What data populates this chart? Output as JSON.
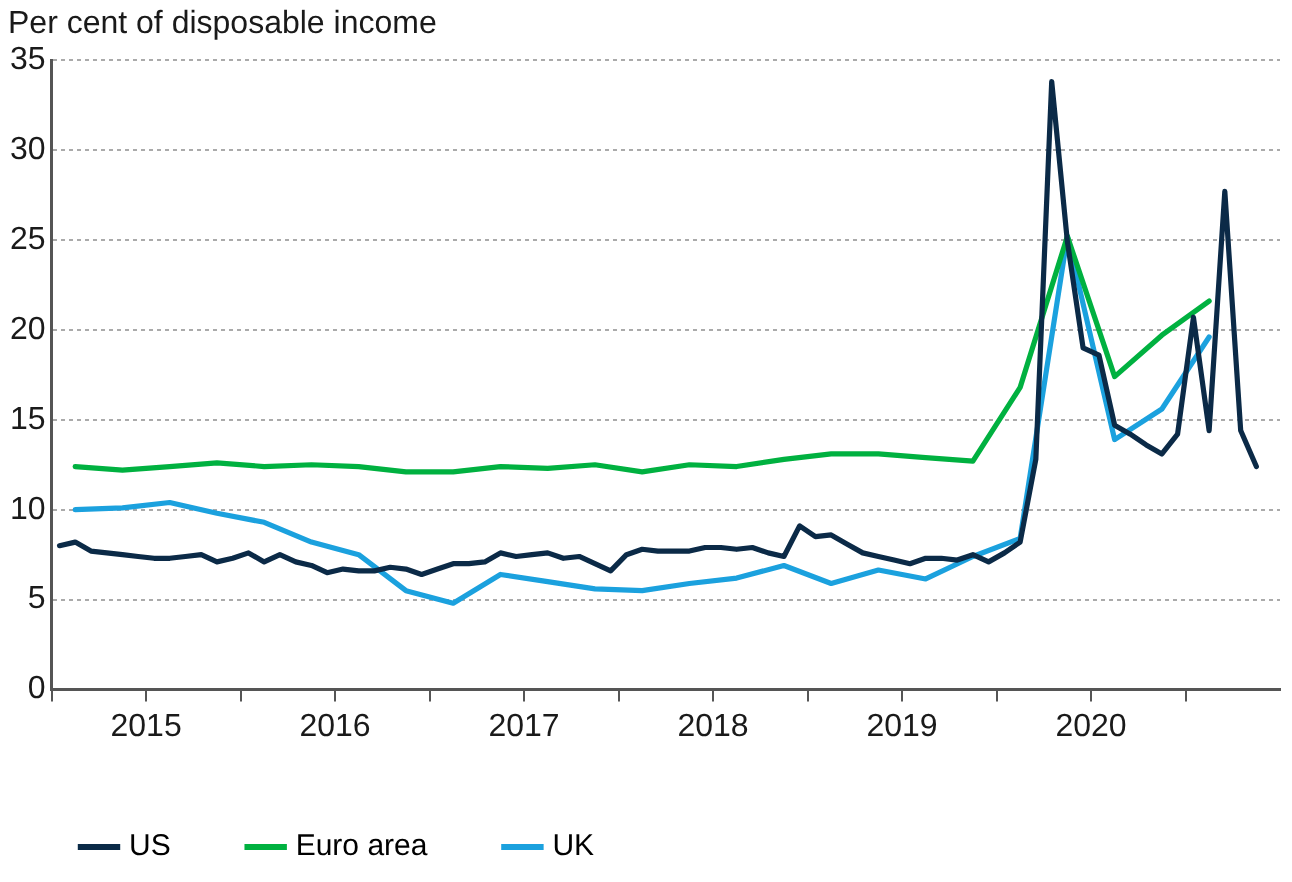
{
  "chart_data": {
    "type": "line",
    "ylabel": "Per cent of disposable income",
    "xlim": [
      2015,
      2021.5
    ],
    "xticks": [
      {
        "value": 2015,
        "label": null
      },
      {
        "value": 2015.5,
        "label": "2015"
      },
      {
        "value": 2016,
        "label": null
      },
      {
        "value": 2016.5,
        "label": "2016"
      },
      {
        "value": 2017,
        "label": null
      },
      {
        "value": 2017.5,
        "label": "2017"
      },
      {
        "value": 2018,
        "label": null
      },
      {
        "value": 2018.5,
        "label": "2018"
      },
      {
        "value": 2019,
        "label": null
      },
      {
        "value": 2019.5,
        "label": "2019"
      },
      {
        "value": 2020,
        "label": null
      },
      {
        "value": 2020.5,
        "label": "2020"
      },
      {
        "value": 2021,
        "label": null
      }
    ],
    "ylim": [
      0,
      35
    ],
    "yticks": [
      0,
      5,
      10,
      15,
      20,
      25,
      30,
      35
    ],
    "grid": "y",
    "legend": "bottom",
    "marker": "none",
    "line_style": "solid",
    "series": [
      {
        "name": "US",
        "color": "#0b2a47",
        "x": [
          2015.042,
          2015.125,
          2015.208,
          2015.292,
          2015.375,
          2015.458,
          2015.542,
          2015.625,
          2015.708,
          2015.792,
          2015.875,
          2015.958,
          2016.042,
          2016.125,
          2016.208,
          2016.292,
          2016.375,
          2016.458,
          2016.542,
          2016.625,
          2016.708,
          2016.792,
          2016.875,
          2016.958,
          2017.042,
          2017.125,
          2017.208,
          2017.292,
          2017.375,
          2017.458,
          2017.542,
          2017.625,
          2017.708,
          2017.792,
          2017.875,
          2017.958,
          2018.042,
          2018.125,
          2018.208,
          2018.292,
          2018.375,
          2018.458,
          2018.542,
          2018.625,
          2018.708,
          2018.792,
          2018.875,
          2018.958,
          2019.042,
          2019.125,
          2019.208,
          2019.292,
          2019.375,
          2019.458,
          2019.542,
          2019.625,
          2019.708,
          2019.792,
          2019.875,
          2019.958,
          2020.042,
          2020.125,
          2020.208,
          2020.292,
          2020.375,
          2020.458,
          2020.542,
          2020.625,
          2020.708,
          2020.792,
          2020.875,
          2020.958,
          2021.042,
          2021.125,
          2021.208,
          2021.292,
          2021.375
        ],
        "values": [
          8.0,
          8.2,
          7.7,
          7.6,
          7.5,
          7.4,
          7.3,
          7.3,
          7.4,
          7.5,
          7.1,
          7.3,
          7.6,
          7.1,
          7.5,
          7.1,
          6.9,
          6.5,
          6.7,
          6.6,
          6.6,
          6.8,
          6.7,
          6.4,
          6.7,
          7.0,
          7.0,
          7.1,
          7.6,
          7.4,
          7.5,
          7.6,
          7.3,
          7.4,
          7.0,
          6.6,
          7.5,
          7.8,
          7.7,
          7.7,
          7.7,
          7.9,
          7.9,
          7.8,
          7.9,
          7.6,
          7.4,
          9.1,
          8.5,
          8.6,
          8.1,
          7.6,
          7.4,
          7.2,
          7.0,
          7.3,
          7.3,
          7.2,
          7.5,
          7.1,
          7.6,
          8.2,
          12.8,
          33.8,
          24.9,
          19.0,
          18.6,
          14.7,
          14.2,
          13.6,
          13.1,
          14.2,
          20.7,
          14.4,
          27.7,
          14.4,
          12.4
        ]
      },
      {
        "name": "Euro area",
        "color": "#00b140",
        "x": [
          2015.125,
          2015.375,
          2015.625,
          2015.875,
          2016.125,
          2016.375,
          2016.625,
          2016.875,
          2017.125,
          2017.375,
          2017.625,
          2017.875,
          2018.125,
          2018.375,
          2018.625,
          2018.875,
          2019.125,
          2019.375,
          2019.625,
          2019.875,
          2020.125,
          2020.375,
          2020.625,
          2020.875,
          2021.125
        ],
        "values": [
          12.4,
          12.2,
          12.4,
          12.6,
          12.4,
          12.5,
          12.4,
          12.1,
          12.1,
          12.4,
          12.3,
          12.5,
          12.1,
          12.5,
          12.4,
          12.8,
          13.1,
          13.1,
          12.9,
          12.7,
          16.8,
          25.2,
          17.4,
          19.7,
          21.6
        ]
      },
      {
        "name": "UK",
        "color": "#1ba1de",
        "x": [
          2015.125,
          2015.375,
          2015.625,
          2015.875,
          2016.125,
          2016.375,
          2016.625,
          2016.875,
          2017.125,
          2017.375,
          2017.625,
          2017.875,
          2018.125,
          2018.375,
          2018.625,
          2018.875,
          2019.125,
          2019.375,
          2019.625,
          2019.875,
          2020.125,
          2020.375,
          2020.625,
          2020.875,
          2021.125
        ],
        "values": [
          10.0,
          10.1,
          10.4,
          9.8,
          9.3,
          8.2,
          7.5,
          5.5,
          4.8,
          6.4,
          6.0,
          5.6,
          5.5,
          5.9,
          6.2,
          6.9,
          5.9,
          6.65,
          6.15,
          7.4,
          8.4,
          25.2,
          13.9,
          15.6,
          19.6
        ]
      }
    ]
  }
}
